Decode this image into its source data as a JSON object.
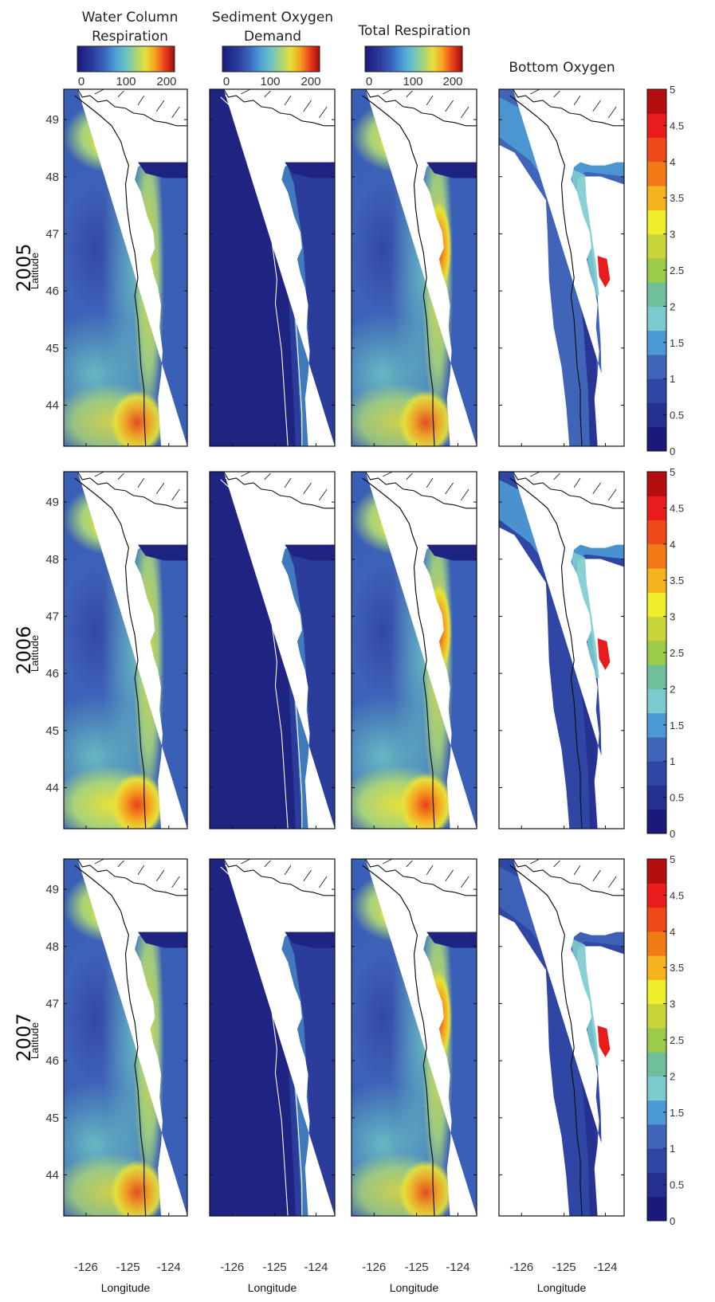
{
  "columns": [
    {
      "title_lines": [
        "Water Column",
        "Respiration"
      ],
      "colorbar_ticks": [
        "0",
        "100",
        "200"
      ]
    },
    {
      "title_lines": [
        "Sediment Oxygen",
        "Demand"
      ],
      "colorbar_ticks": [
        "0",
        "100",
        "200"
      ]
    },
    {
      "title_lines": [
        "Total Respiration"
      ],
      "colorbar_ticks": [
        "0",
        "100",
        "200"
      ]
    },
    {
      "title_lines": [
        "Bottom Oxygen"
      ],
      "colorbar_ticks": []
    }
  ],
  "rows": [
    {
      "year": "2005",
      "ylabel": "Latitude"
    },
    {
      "year": "2006",
      "ylabel": "Latitude"
    },
    {
      "year": "2007",
      "ylabel": "Latitude"
    }
  ],
  "lat_ticks": [
    "49",
    "48",
    "47",
    "46",
    "45",
    "44"
  ],
  "lon_ticks": [
    "-126",
    "-125",
    "-124"
  ],
  "xlabel": "Longitude",
  "oxygen_colorbar_ticks": [
    "5",
    "4.5",
    "4",
    "3.5",
    "3",
    "2.5",
    "2",
    "1.5",
    "1",
    "0.5",
    "0"
  ],
  "colors": {
    "jet_scale": [
      "#1a1a7a",
      "#2b3a9a",
      "#3a66c0",
      "#4fa3d6",
      "#6cc3c4",
      "#a6d27a",
      "#e6e03a",
      "#f6a11f",
      "#e8401a",
      "#9e0c0c"
    ],
    "oxygen_scale": [
      "#1a1a7a",
      "#25308f",
      "#2f46a4",
      "#3f64b8",
      "#4c9ad4",
      "#7ccbcf",
      "#6fbf9a",
      "#9ccc4a",
      "#c8d53a",
      "#f0ee2a",
      "#f6b31e",
      "#f27a17",
      "#ee4a17",
      "#e81c1c",
      "#b50d0d"
    ]
  }
}
